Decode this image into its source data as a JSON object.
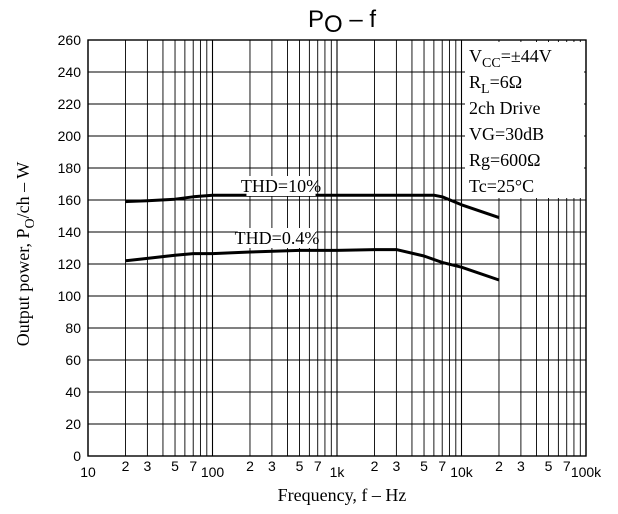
{
  "chart_data": {
    "type": "line",
    "title": {
      "main": "P",
      "sub": "O",
      "rest": " – f"
    },
    "xlabel": "Frequency,  f  –  Hz",
    "ylabel": {
      "pre": "Output power,  P",
      "sub": "O",
      "post": "/ch  –  W"
    },
    "x_scale": "log",
    "xlim": [
      10,
      100000
    ],
    "ylim": [
      0,
      260
    ],
    "grid": true,
    "y_ticks": [
      0,
      20,
      40,
      60,
      80,
      100,
      120,
      140,
      160,
      180,
      200,
      220,
      240,
      260
    ],
    "x_tick_labels": [
      {
        "v": 10,
        "t": "10",
        "major": true
      },
      {
        "v": 20,
        "t": "2"
      },
      {
        "v": 30,
        "t": "3"
      },
      {
        "v": 50,
        "t": "5"
      },
      {
        "v": 70,
        "t": "7"
      },
      {
        "v": 100,
        "t": "100",
        "major": true
      },
      {
        "v": 200,
        "t": "2"
      },
      {
        "v": 300,
        "t": "3"
      },
      {
        "v": 500,
        "t": "5"
      },
      {
        "v": 700,
        "t": "7"
      },
      {
        "v": 1000,
        "t": "1k",
        "major": true
      },
      {
        "v": 2000,
        "t": "2"
      },
      {
        "v": 3000,
        "t": "3"
      },
      {
        "v": 5000,
        "t": "5"
      },
      {
        "v": 7000,
        "t": "7"
      },
      {
        "v": 10000,
        "t": "10k",
        "major": true
      },
      {
        "v": 20000,
        "t": "2"
      },
      {
        "v": 30000,
        "t": "3"
      },
      {
        "v": 50000,
        "t": "5"
      },
      {
        "v": 70000,
        "t": "7"
      },
      {
        "v": 100000,
        "t": "100k",
        "major": true
      }
    ],
    "series": [
      {
        "name": "THD=10%",
        "x": [
          20,
          30,
          50,
          70,
          100,
          200,
          500,
          1000,
          2000,
          3000,
          5000,
          6000,
          7000,
          10000,
          20000
        ],
        "y": [
          159,
          159.5,
          160.5,
          162,
          163,
          163,
          163,
          163,
          163,
          163,
          163,
          163,
          162,
          157,
          149
        ]
      },
      {
        "name": "THD=0.4%",
        "x": [
          20,
          30,
          50,
          70,
          100,
          200,
          500,
          1000,
          2000,
          3000,
          5000,
          7000,
          10000,
          20000
        ],
        "y": [
          122,
          123.5,
          125.5,
          126.5,
          126.5,
          127.5,
          128.5,
          128.5,
          129,
          129,
          125,
          121,
          118,
          110
        ]
      }
    ],
    "conditions": [
      {
        "main": "V",
        "sub": "CC",
        "rest": "=±44V"
      },
      {
        "main": "R",
        "sub": "L",
        "rest": "=6Ω"
      },
      {
        "main": "2ch Drive",
        "sub": "",
        "rest": ""
      },
      {
        "main": "VG=30dB",
        "sub": "",
        "rest": ""
      },
      {
        "main": "Rg=600Ω",
        "sub": "",
        "rest": ""
      },
      {
        "main": "Tc=25°C",
        "sub": "",
        "rest": ""
      }
    ]
  }
}
